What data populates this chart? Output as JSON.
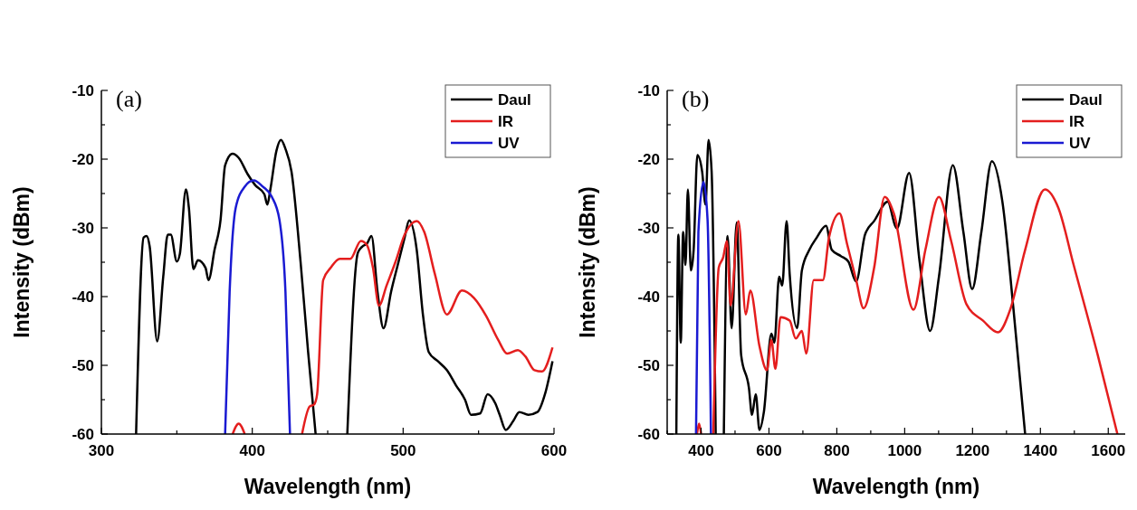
{
  "chart_data": [
    {
      "type": "line",
      "title": "(a)",
      "xlabel": "Wavelength (nm)",
      "ylabel": "Intensity (dBm)",
      "xlim": [
        300,
        600
      ],
      "ylim": [
        -60,
        -10
      ],
      "xticks": [
        300,
        {
          "value": 350,
          "label": null
        },
        400,
        {
          "value": 450,
          "label": null
        },
        500,
        {
          "value": 550,
          "label": null
        },
        600
      ],
      "yticks": [
        -60,
        {
          "value": -55,
          "label": null
        },
        -50,
        {
          "value": -45,
          "label": null
        },
        -40,
        {
          "value": -35,
          "label": null
        },
        -30,
        {
          "value": -25,
          "label": null
        },
        -20,
        {
          "value": -15,
          "label": null
        },
        -10
      ],
      "legend": "top right",
      "grid": false,
      "series": [
        {
          "name": "Daul",
          "color": "#000000",
          "x": [
            323,
            328,
            330,
            332,
            337,
            341,
            344,
            346,
            350,
            352,
            356,
            358,
            361,
            364,
            369,
            371,
            375,
            379,
            382,
            387,
            391,
            397,
            402,
            408,
            410,
            412,
            416,
            419,
            422,
            426,
            432,
            437,
            442,
            452,
            463,
            470,
            473,
            476,
            479,
            483,
            487,
            492,
            497,
            501,
            504,
            509,
            513,
            517,
            523,
            529,
            535,
            541,
            545,
            551,
            556,
            561,
            564,
            568,
            573,
            577,
            583,
            589,
            594,
            599
          ],
          "values": [
            -60,
            -31.4,
            -31.2,
            -32.7,
            -46.5,
            -37.1,
            -31,
            -31,
            -34.9,
            -33.8,
            -24.4,
            -27.1,
            -36,
            -34.7,
            -35.8,
            -37.6,
            -33.2,
            -28.8,
            -20.9,
            -19.2,
            -19.8,
            -22.2,
            -23.8,
            -25.1,
            -26.6,
            -24.4,
            -18.8,
            -17.2,
            -18.5,
            -21.8,
            -34.9,
            -48,
            -60,
            null,
            -60,
            -33.6,
            -32.7,
            -32.3,
            -31.2,
            -39.3,
            -44.6,
            -39.3,
            -34.9,
            -31.4,
            -28.9,
            -33.2,
            -42.4,
            -48.1,
            -49.4,
            -50.7,
            -52.9,
            -55,
            -57.2,
            -57,
            -54.2,
            -55.5,
            -57.2,
            -59.4,
            -58.1,
            -56.8,
            -57.2,
            -56.8,
            -54.2,
            -49.4
          ]
        },
        {
          "name": "IR",
          "color": "#e41e1e",
          "x": [
            387,
            391,
            395,
            420,
            433,
            438,
            441,
            443,
            447,
            452,
            458,
            465,
            472,
            476,
            480,
            484,
            489,
            495,
            501,
            509,
            514,
            521,
            529,
            539,
            547,
            555,
            563,
            569,
            576,
            581,
            587,
            592,
            599
          ],
          "values": [
            -60,
            -58.5,
            -60,
            null,
            -60,
            -56,
            -55.7,
            -54.2,
            -37.6,
            -35.8,
            -34.5,
            -34.5,
            -31.9,
            -32.5,
            -35.8,
            -41.3,
            -38.4,
            -34.9,
            -31,
            -29,
            -30.6,
            -36.7,
            -42.6,
            -39.1,
            -40.2,
            -42.8,
            -46.3,
            -48.3,
            -47.8,
            -48.7,
            -50.7,
            -50.9,
            -47.4
          ]
        },
        {
          "name": "UV",
          "color": "#1a1ad2",
          "x": [
            382,
            385,
            389,
            395,
            401,
            407,
            413,
            418,
            422,
            425
          ],
          "values": [
            -60,
            -39.3,
            -27.1,
            -24,
            -23.1,
            -24,
            -25.5,
            -28.8,
            -39.3,
            -60
          ]
        }
      ]
    },
    {
      "type": "line",
      "title": "(b)",
      "xlabel": "Wavelength (nm)",
      "ylabel": "Intensity (dBm)",
      "xlim": [
        300,
        1650
      ],
      "ylim": [
        -60,
        -10
      ],
      "xticks": [
        {
          "value": 300,
          "label": null
        },
        400,
        {
          "value": 500,
          "label": null
        },
        600,
        {
          "value": 700,
          "label": null
        },
        800,
        {
          "value": 900,
          "label": null
        },
        1000,
        {
          "value": 1100,
          "label": null
        },
        1200,
        {
          "value": 1300,
          "label": null
        },
        1400,
        {
          "value": 1500,
          "label": null
        },
        1600
      ],
      "yticks": [
        -60,
        {
          "value": -55,
          "label": null
        },
        -50,
        {
          "value": -45,
          "label": null
        },
        -40,
        {
          "value": -35,
          "label": null
        },
        -30,
        {
          "value": -25,
          "label": null
        },
        -20,
        {
          "value": -15,
          "label": null
        },
        -10
      ],
      "legend": "top right",
      "grid": false,
      "series": [
        {
          "name": "Daul",
          "color": "#000000",
          "x": [
            327,
            333,
            340,
            347,
            354,
            361,
            370,
            378,
            389,
            403,
            413,
            422,
            431,
            443,
            455,
            467,
            478,
            490,
            505,
            518,
            541,
            550,
            561,
            572,
            585,
            607,
            616,
            630,
            639,
            652,
            661,
            683,
            697,
            719,
            741,
            768,
            785,
            812,
            834,
            857,
            883,
            910,
            950,
            972,
            977,
            1013,
            1044,
            1075,
            1101,
            1142,
            1173,
            1199,
            1226,
            1257,
            1288,
            1320,
            1355
          ],
          "values": [
            -60,
            -31,
            -46.7,
            -30.6,
            -35.4,
            -24.4,
            -36.2,
            -33.2,
            -19.4,
            -21.8,
            -26.6,
            -17.2,
            -21.8,
            -60,
            null,
            -60,
            -31.2,
            -44.6,
            -29.2,
            -48.5,
            -53.3,
            -57.2,
            -54.2,
            -59.4,
            -56.8,
            -45.4,
            -46.7,
            -37.1,
            -38.4,
            -29,
            -36.7,
            -44.6,
            -36.2,
            -33.2,
            -31.4,
            -29.7,
            -33.2,
            -34.1,
            -34.9,
            -37.8,
            -31,
            -29,
            -26.2,
            -29.7,
            -30.1,
            -22,
            -34.9,
            -45,
            -37.1,
            -20.9,
            -30.6,
            -38.9,
            -30.6,
            -20.3,
            -26.2,
            -41.5,
            -60
          ]
        },
        {
          "name": "IR",
          "color": "#e41e1e",
          "x": [
            388,
            394,
            400,
            418,
            436,
            452,
            465,
            476,
            487,
            510,
            532,
            545,
            572,
            594,
            607,
            619,
            634,
            661,
            679,
            697,
            710,
            732,
            759,
            777,
            808,
            830,
            857,
            879,
            910,
            941,
            968,
            1026,
            1061,
            1101,
            1137,
            1182,
            1231,
            1275,
            1311,
            1355,
            1413,
            1453,
            1498,
            1569,
            1627
          ],
          "values": [
            -60,
            -58.5,
            -60,
            null,
            -60,
            -35.8,
            -34.3,
            -31.9,
            -41.3,
            -29,
            -42.6,
            -39.1,
            -47.2,
            -50.7,
            -46.3,
            -50.5,
            -43,
            -43.5,
            -46.1,
            -45,
            -48.3,
            -37.6,
            -37.6,
            -31.4,
            -27.9,
            -32.3,
            -37.6,
            -41.7,
            -35.8,
            -25.5,
            -27.9,
            -41.9,
            -33.2,
            -25.5,
            -31.9,
            -41.1,
            -43.5,
            -45.2,
            -41.9,
            -33.2,
            -24.4,
            -27.1,
            -35.4,
            -48.5,
            -60
          ]
        },
        {
          "name": "UV",
          "color": "#1a1ad2",
          "x": [
            385,
            392,
            407,
            419,
            429
          ],
          "values": [
            -60,
            -30.6,
            -23.3,
            -28.8,
            -60
          ]
        }
      ]
    }
  ]
}
